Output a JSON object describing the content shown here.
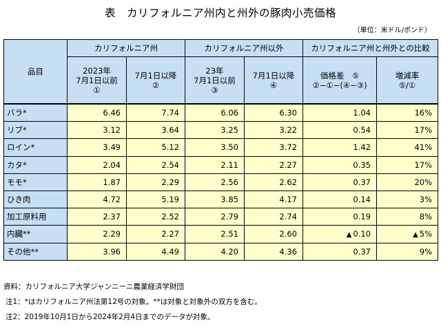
{
  "title": "表　カリフォルニア州内と州外の豚肉小売価格",
  "unit": "（単位：米ドル/ポンド）",
  "header": {
    "item_label": "品目",
    "groups": [
      "カリフォルニア州",
      "カリフォルニア州以外",
      "カリフォルニア州と州外との比較"
    ],
    "cols": [
      [
        "2023年",
        "7月1日以前",
        "①"
      ],
      [
        "7月1日以降",
        "②"
      ],
      [
        "23年",
        "7月1日以前",
        "③"
      ],
      [
        "7月1日以降",
        "④"
      ],
      [
        "価格差　⑤",
        "②−①−(④−③)"
      ],
      [
        "増減率",
        "⑤/①"
      ]
    ]
  },
  "rows": [
    {
      "name": "バラ*",
      "c1": "6.46",
      "c2": "7.74",
      "c3": "6.06",
      "c4": "6.30",
      "c5": "1.04",
      "c6": "16%",
      "c5_neg": false,
      "c6_neg": false
    },
    {
      "name": "リブ*",
      "c1": "3.12",
      "c2": "3.64",
      "c3": "3.25",
      "c4": "3.22",
      "c5": "0.54",
      "c6": "17%",
      "c5_neg": false,
      "c6_neg": false
    },
    {
      "name": "ロイン*",
      "c1": "3.49",
      "c2": "5.12",
      "c3": "3.50",
      "c4": "3.72",
      "c5": "1.42",
      "c6": "41%",
      "c5_neg": false,
      "c6_neg": false
    },
    {
      "name": "カタ*",
      "c1": "2.04",
      "c2": "2.54",
      "c3": "2.11",
      "c4": "2.27",
      "c5": "0.35",
      "c6": "17%",
      "c5_neg": false,
      "c6_neg": false
    },
    {
      "name": "モモ*",
      "c1": "1.87",
      "c2": "2.29",
      "c3": "2.56",
      "c4": "2.62",
      "c5": "0.37",
      "c6": "20%",
      "c5_neg": false,
      "c6_neg": false
    },
    {
      "name": "ひき肉",
      "c1": "4.72",
      "c2": "5.19",
      "c3": "3.85",
      "c4": "4.17",
      "c5": "0.14",
      "c6": "3%",
      "c5_neg": false,
      "c6_neg": false
    },
    {
      "name": "加工原料用",
      "c1": "2.37",
      "c2": "2.52",
      "c3": "2.79",
      "c4": "2.74",
      "c5": "0.19",
      "c6": "8%",
      "c5_neg": false,
      "c6_neg": false
    },
    {
      "name": "内臓**",
      "c1": "2.29",
      "c2": "2.27",
      "c3": "2.51",
      "c4": "2.60",
      "c5": "0.10",
      "c6": "5%",
      "c5_neg": true,
      "c6_neg": true
    },
    {
      "name": "その他**",
      "c1": "3.96",
      "c2": "4.49",
      "c3": "4.20",
      "c4": "4.36",
      "c5": "0.37",
      "c6": "9%",
      "c5_neg": false,
      "c6_neg": false
    }
  ],
  "notes": {
    "source": "資料：カリフォルニア大学ジャンニーニ農業経済学財団",
    "note1": "注1：*はカリフォルニア州法第12号の対象。**は対象と対象外の双方を含む。",
    "note2": "注2：2019年10月1日から2024年2月4日までのデータが対象。"
  }
}
